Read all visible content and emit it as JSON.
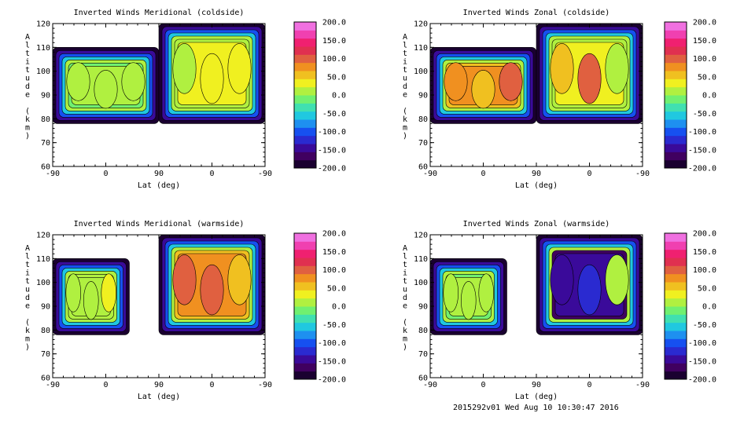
{
  "figure": {
    "footer": "2015292v01 Wed Aug 10 10:30:47 2016"
  },
  "colorbar": {
    "ticks": [
      "200.0",
      "150.0",
      "100.0",
      "50.0",
      "0.0",
      "-50.0",
      "-100.0",
      "-150.0",
      "-200.0"
    ],
    "range": [
      -200,
      200
    ],
    "colors": [
      "#1a0030",
      "#400060",
      "#3a0a9a",
      "#2a2ad0",
      "#1650f0",
      "#1e90f0",
      "#20c8e0",
      "#40e0b0",
      "#70f070",
      "#b0f040",
      "#f0f020",
      "#f0c020",
      "#f09020",
      "#e06040",
      "#e03050",
      "#f02070",
      "#f040b0",
      "#f070e0"
    ]
  },
  "chart_data": [
    {
      "type": "heatmap",
      "title": "Inverted Winds Meridional (coldside)",
      "xlabel": "Lat (deg)",
      "ylabel": "Altitude (km)",
      "x_ticks": [
        "-90",
        "0",
        "90",
        "0",
        "-90"
      ],
      "y_ticks": [
        "120",
        "110",
        "100",
        "90",
        "80",
        "70",
        "60"
      ],
      "ylim": [
        60,
        120
      ],
      "color_scale": [
        -200,
        200
      ],
      "panels": [
        {
          "lat_range": [
            -90,
            90
          ],
          "alt_range": [
            78,
            110
          ],
          "peak_values": [
            0,
            10,
            20
          ]
        },
        {
          "lat_range": [
            90,
            -90
          ],
          "alt_range": [
            78,
            120
          ],
          "peak_values": [
            20,
            30,
            40
          ]
        }
      ]
    },
    {
      "type": "heatmap",
      "title": "Inverted Winds Zonal (coldside)",
      "xlabel": "Lat (deg)",
      "ylabel": "Altitude (km)",
      "x_ticks": [
        "-90",
        "0",
        "90",
        "0",
        "-90"
      ],
      "y_ticks": [
        "120",
        "110",
        "100",
        "90",
        "80",
        "70",
        "60"
      ],
      "ylim": [
        60,
        120
      ],
      "color_scale": [
        -200,
        200
      ],
      "panels": [
        {
          "lat_range": [
            -90,
            90
          ],
          "alt_range": [
            78,
            110
          ],
          "peak_values": [
            80,
            60,
            100
          ]
        },
        {
          "lat_range": [
            90,
            -90
          ],
          "alt_range": [
            78,
            120
          ],
          "peak_values": [
            60,
            110,
            20
          ]
        }
      ]
    },
    {
      "type": "heatmap",
      "title": "Inverted Winds Meridional (warmside)",
      "xlabel": "Lat (deg)",
      "ylabel": "Altitude (km)",
      "x_ticks": [
        "-90",
        "0",
        "90",
        "0",
        "-90"
      ],
      "y_ticks": [
        "120",
        "110",
        "100",
        "90",
        "80",
        "70",
        "60"
      ],
      "ylim": [
        60,
        120
      ],
      "color_scale": [
        -200,
        200
      ],
      "panels": [
        {
          "lat_range": [
            -90,
            40
          ],
          "alt_range": [
            78,
            110
          ],
          "peak_values": [
            20,
            10,
            30
          ]
        },
        {
          "lat_range": [
            90,
            -90
          ],
          "alt_range": [
            78,
            120
          ],
          "peak_values": [
            90,
            110,
            60
          ]
        }
      ]
    },
    {
      "type": "heatmap",
      "title": "Inverted Winds Zonal (warmside)",
      "xlabel": "Lat (deg)",
      "ylabel": "Altitude (km)",
      "x_ticks": [
        "-90",
        "0",
        "90",
        "0",
        "-90"
      ],
      "y_ticks": [
        "120",
        "110",
        "100",
        "90",
        "80",
        "70",
        "60"
      ],
      "ylim": [
        60,
        120
      ],
      "color_scale": [
        -200,
        200
      ],
      "panels": [
        {
          "lat_range": [
            -90,
            40
          ],
          "alt_range": [
            78,
            110
          ],
          "peak_values": [
            10,
            20,
            0
          ]
        },
        {
          "lat_range": [
            90,
            -90
          ],
          "alt_range": [
            78,
            120
          ],
          "peak_values": [
            -150,
            -120,
            20
          ]
        }
      ]
    }
  ]
}
